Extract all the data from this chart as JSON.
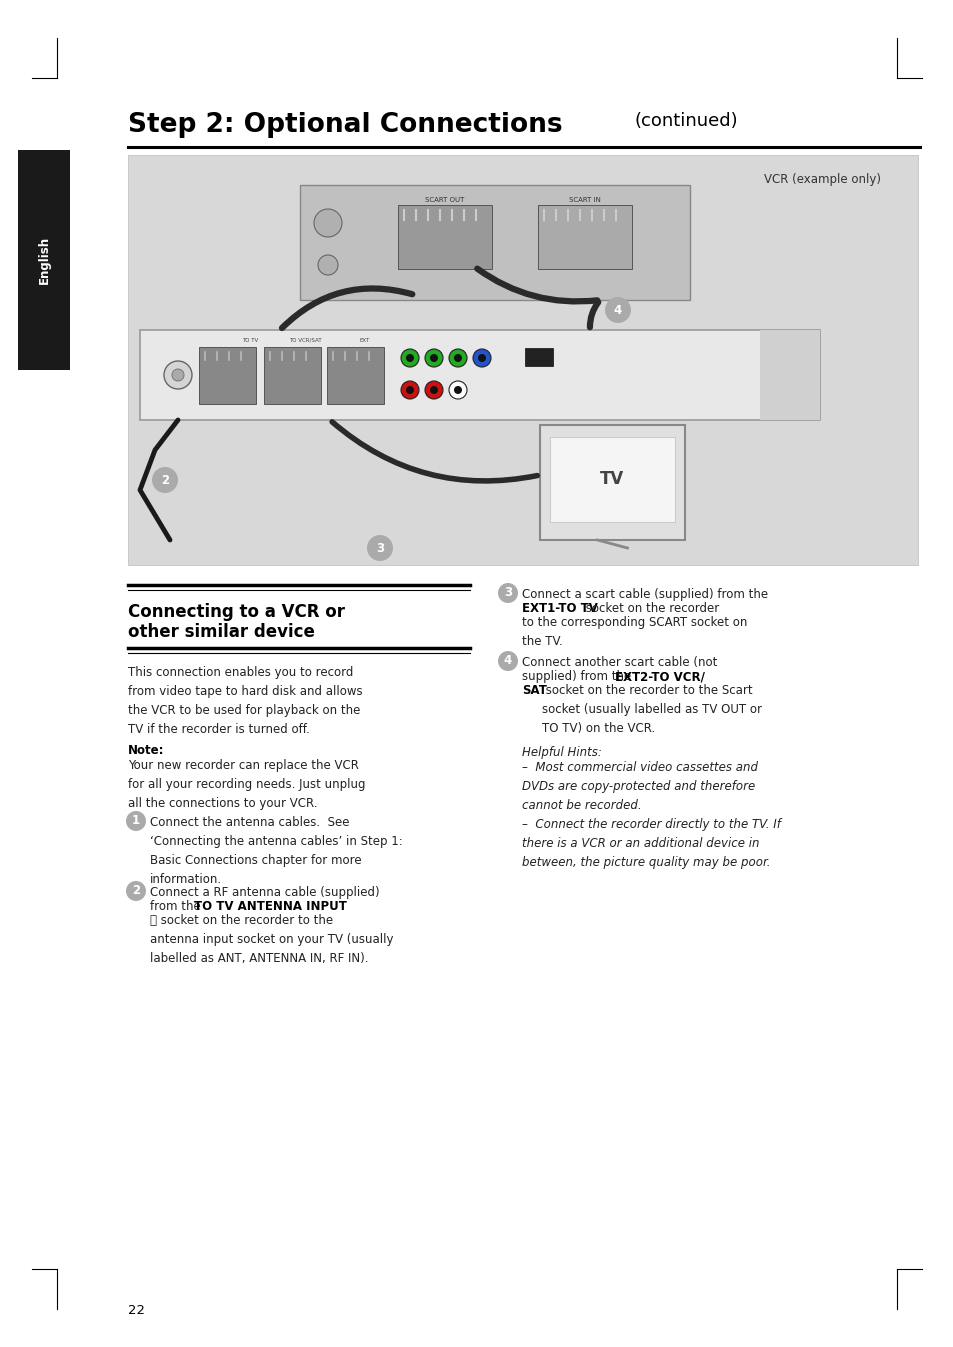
{
  "page_bg": "#ffffff",
  "diagram_bg": "#d8d8d8",
  "title_bold": "Step 2: Optional Connections",
  "title_continued": "(continued)",
  "vcr_label": "VCR (example only)",
  "section_heading_line1": "Connecting to a VCR or",
  "section_heading_line2": "other similar device",
  "section_body": "This connection enables you to record\nfrom video tape to hard disk and allows\nthe VCR to be used for playback on the\nTV if the recorder is turned off.",
  "note_label": "Note:",
  "note_body": "Your new recorder can replace the VCR\nfor all your recording needs. Just unplug\nall the connections to your VCR.",
  "step1_text": "Connect the antenna cables.  See\n‘Connecting the antenna cables’ in Step 1:\nBasic Connections chapter for more\ninformation.",
  "step2_pre": "Connect a RF antenna cable (supplied)\nfrom the ",
  "step2_bold": "TO TV ANTENNA INPUT",
  "step2_post": "\n⮕ socket on the recorder to the\nantenna input socket on your TV (usually\nlabelled as ANT, ANTENNA IN, RF IN).",
  "step3_pre": "Connect a scart cable (supplied) from the\n",
  "step3_bold": "EXT1-TO TV",
  "step3_post": " socket on the recorder\nto the corresponding SCART socket on\nthe TV.",
  "step4_pre": "Connect another scart cable (not\nsupplied) from the ",
  "step4_bold1": "EXT2-TO VCR/",
  "step4_bold2": "SAT",
  "step4_post": " socket on the recorder to the Scart\nsocket (usually labelled as TV OUT or\nTO TV) on the VCR.",
  "helpful_label": "Helpful Hints:",
  "helpful_body": "–  Most commercial video cassettes and\nDVDs are copy-protected and therefore\ncannot be recorded.\n–  Connect the recorder directly to the TV. If\nthere is a VCR or an additional device in\nbetween, the picture quality may be poor.",
  "page_number": "22",
  "english_tab_text": "English",
  "tab_bg": "#1a1a1a",
  "tab_text_color": "#ffffff",
  "corner_line_color": "#000000",
  "body_fontsize": 8.5,
  "heading_fontsize": 12,
  "title_fontsize": 19
}
